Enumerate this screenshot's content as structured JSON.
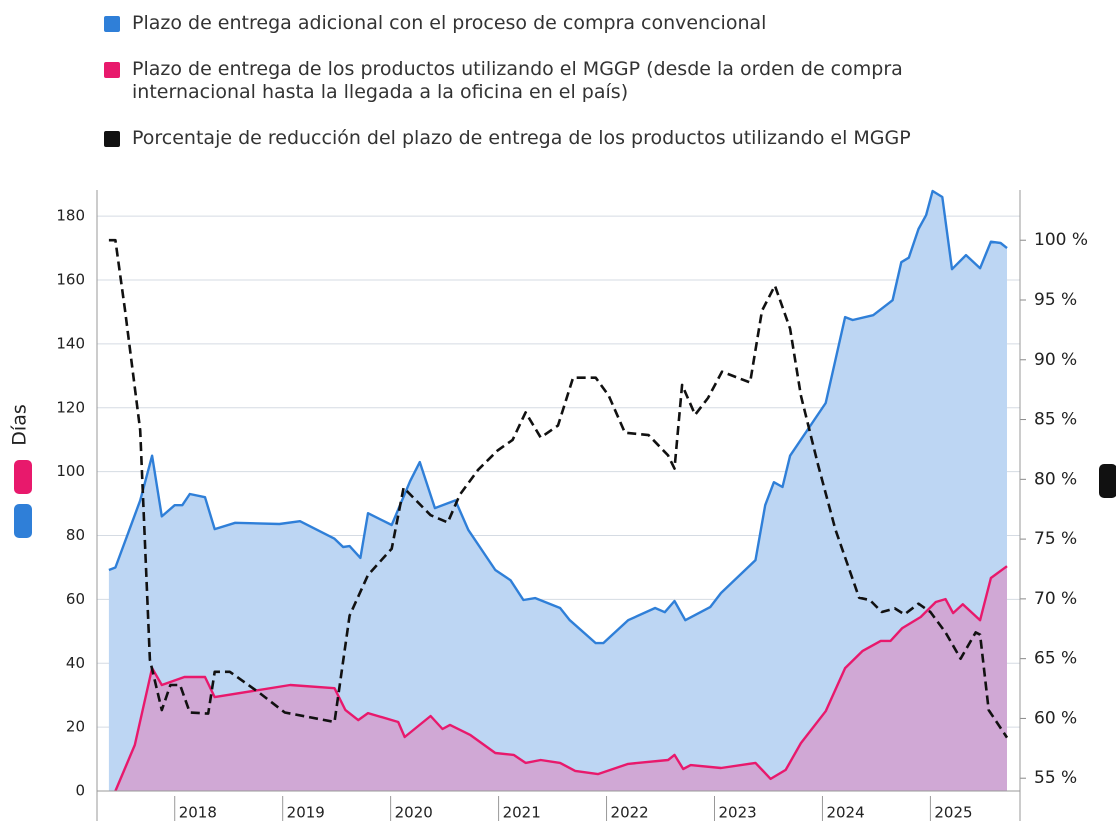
{
  "chart_data": {
    "type": "line",
    "ylabel": "Días",
    "xlim": [
      2017.28,
      2025.83
    ],
    "xticks": [
      2018,
      2019,
      2020,
      2021,
      2022,
      2023,
      2024,
      2025
    ],
    "ylim": [
      0,
      188.2
    ],
    "yticks": [
      0,
      20,
      40,
      60,
      80,
      100,
      120,
      140,
      160,
      180
    ],
    "y2lim": [
      53.93,
      104.2
    ],
    "y2ticks": [
      {
        "value": 55,
        "label": "55 %"
      },
      {
        "value": 60,
        "label": "60 %"
      },
      {
        "value": 65,
        "label": "65 %"
      },
      {
        "value": 70,
        "label": "70 %"
      },
      {
        "value": 75,
        "label": "75 %"
      },
      {
        "value": 80,
        "label": "80 %"
      },
      {
        "value": 85,
        "label": "85 %"
      },
      {
        "value": 90,
        "label": "90 %"
      },
      {
        "value": 95,
        "label": "95 %"
      },
      {
        "value": 100,
        "label": "100 %"
      }
    ],
    "grid": true,
    "series": [
      {
        "name": "Plazo de entrega adicional con el proceso de compra convencional",
        "color": "#2f7fd8",
        "fill": "#bdd6f3",
        "axis": "y",
        "x": [
          2017.39,
          2017.45,
          2017.68,
          2017.79,
          2017.88,
          2018.0,
          2018.07,
          2018.14,
          2018.28,
          2018.37,
          2018.56,
          2018.97,
          2019.16,
          2019.48,
          2019.56,
          2019.62,
          2019.72,
          2019.79,
          2020.01,
          2020.18,
          2020.27,
          2020.41,
          2020.6,
          2020.72,
          2020.97,
          2021.11,
          2021.23,
          2021.34,
          2021.57,
          2021.66,
          2021.9,
          2021.97,
          2022.2,
          2022.45,
          2022.54,
          2022.63,
          2022.73,
          2022.96,
          2023.06,
          2023.38,
          2023.47,
          2023.55,
          2023.63,
          2023.7,
          2024.03,
          2024.21,
          2024.28,
          2024.47,
          2024.65,
          2024.73,
          2024.8,
          2024.89,
          2024.96,
          2025.02,
          2025.11,
          2025.2,
          2025.33,
          2025.46,
          2025.56,
          2025.65,
          2025.71
        ],
        "values": [
          69.2,
          70,
          91,
          105,
          86,
          89.5,
          89.5,
          93,
          92,
          82,
          84,
          83.6,
          84.5,
          79,
          76.4,
          76.7,
          73,
          87,
          83.3,
          97,
          103,
          88.6,
          91,
          81.7,
          69.2,
          66,
          59.8,
          60.4,
          57.3,
          53.5,
          46.3,
          46.3,
          53.5,
          57.3,
          56,
          59.5,
          53.5,
          57.6,
          62,
          72.3,
          89.5,
          96.7,
          95.2,
          105,
          121.5,
          148.4,
          147.5,
          149,
          153.7,
          165.6,
          167,
          176,
          180.3,
          187.9,
          186,
          163.4,
          167.8,
          163.7,
          172,
          171.6,
          170
        ]
      },
      {
        "name": "Plazo de entrega de los productos utilizando el MGGP (desde la orden de compra internacional hasta la llegada a la oficina en el país)",
        "color": "#e8196c",
        "fill": "#d4a0cf",
        "axis": "y",
        "x": [
          2017.45,
          2017.63,
          2017.79,
          2017.88,
          2018.09,
          2018.28,
          2018.37,
          2019.07,
          2019.48,
          2019.58,
          2019.7,
          2019.79,
          2020.07,
          2020.13,
          2020.37,
          2020.48,
          2020.55,
          2020.74,
          2020.97,
          2021.14,
          2021.25,
          2021.39,
          2021.57,
          2021.71,
          2021.92,
          2022.2,
          2022.57,
          2022.63,
          2022.71,
          2022.78,
          2023.06,
          2023.38,
          2023.52,
          2023.66,
          2023.8,
          2024.03,
          2024.21,
          2024.37,
          2024.54,
          2024.63,
          2024.74,
          2024.91,
          2025.05,
          2025.14,
          2025.21,
          2025.3,
          2025.46,
          2025.56,
          2025.71
        ],
        "values": [
          0,
          14.4,
          38.5,
          33.2,
          35.7,
          35.7,
          29.4,
          33.2,
          32.2,
          25.4,
          22.2,
          24.4,
          21.6,
          16.9,
          23.5,
          19.4,
          20.7,
          17.5,
          11.9,
          11.3,
          8.8,
          9.7,
          8.8,
          6.3,
          5.3,
          8.5,
          9.7,
          11.3,
          6.9,
          8.1,
          7.2,
          8.8,
          3.8,
          6.6,
          15,
          25,
          38.5,
          43.8,
          47,
          47,
          51,
          54.5,
          59.2,
          60.1,
          55.7,
          58.5,
          53.5,
          66.7,
          70.4
        ]
      },
      {
        "name": "Porcentaje de reducción del plazo de entrega de los productos utilizando el MGGP",
        "color": "#111111",
        "axis": "y2",
        "dashed": true,
        "x": [
          2017.39,
          2017.45,
          2017.54,
          2017.68,
          2017.77,
          2017.88,
          2017.96,
          2018.05,
          2018.14,
          2018.31,
          2018.37,
          2018.51,
          2018.79,
          2019.02,
          2019.48,
          2019.62,
          2019.79,
          2020.01,
          2020.12,
          2020.37,
          2020.53,
          2020.64,
          2020.81,
          2020.99,
          2021.13,
          2021.25,
          2021.39,
          2021.55,
          2021.69,
          2021.9,
          2022.02,
          2022.17,
          2022.39,
          2022.57,
          2022.63,
          2022.7,
          2022.82,
          2022.94,
          2023.07,
          2023.33,
          2023.44,
          2023.56,
          2023.7,
          2023.8,
          2023.96,
          2024.12,
          2024.34,
          2024.44,
          2024.55,
          2024.67,
          2024.76,
          2024.89,
          2025.0,
          2025.14,
          2025.28,
          2025.42,
          2025.46,
          2025.54,
          2025.71
        ],
        "values": [
          100,
          100,
          94.1,
          84.1,
          64.9,
          60.7,
          62.8,
          62.8,
          60.5,
          60.4,
          63.9,
          63.9,
          62.1,
          60.5,
          59.7,
          68.6,
          72,
          74.2,
          79.3,
          77,
          76.4,
          78.7,
          80.8,
          82.4,
          83.3,
          85.6,
          83.5,
          84.5,
          88.5,
          88.5,
          87,
          83.9,
          83.7,
          82,
          80.9,
          87.9,
          85.4,
          86.8,
          89,
          88.1,
          94.1,
          96.2,
          92.6,
          87,
          81.2,
          75.8,
          70.1,
          69.9,
          68.9,
          69.2,
          68.7,
          69.6,
          68.9,
          67.2,
          65,
          67.2,
          67,
          60.7,
          58.4
        ]
      }
    ]
  }
}
